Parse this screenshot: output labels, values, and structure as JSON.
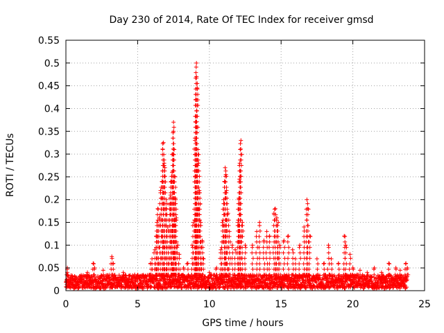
{
  "chart_data": {
    "type": "scatter",
    "title": "Day 230 of 2014, Rate Of TEC Index for receiver gmsd",
    "xlabel": "GPS time / hours",
    "ylabel": "ROTI / TECUs",
    "xlim": [
      0,
      25
    ],
    "ylim": [
      0,
      0.55
    ],
    "xticks": [
      "0",
      "5",
      "10",
      "15",
      "20",
      "25"
    ],
    "yticks": [
      "0",
      "0.05",
      "0.1",
      "0.15",
      "0.2",
      "0.25",
      "0.3",
      "0.35",
      "0.4",
      "0.45",
      "0.5",
      "0.55"
    ],
    "grid": true,
    "marker": "+",
    "series_color": "#ff0000",
    "baseline_hours": [
      0,
      23.8
    ],
    "baseline_roti": [
      0.005,
      0.035
    ],
    "points": [
      [
        0.1,
        0.05
      ],
      [
        0.1,
        0.04
      ],
      [
        0.2,
        0.03
      ],
      [
        0.5,
        0.025
      ],
      [
        1.0,
        0.03
      ],
      [
        1.5,
        0.04
      ],
      [
        1.9,
        0.06
      ],
      [
        2.0,
        0.05
      ],
      [
        2.6,
        0.045
      ],
      [
        3.2,
        0.075
      ],
      [
        3.3,
        0.06
      ],
      [
        4.0,
        0.04
      ],
      [
        4.8,
        0.035
      ],
      [
        5.5,
        0.03
      ],
      [
        5.9,
        0.06
      ],
      [
        6.0,
        0.07
      ],
      [
        6.2,
        0.09
      ],
      [
        6.3,
        0.12
      ],
      [
        6.35,
        0.15
      ],
      [
        6.4,
        0.18
      ],
      [
        6.5,
        0.16
      ],
      [
        6.6,
        0.22
      ],
      [
        6.7,
        0.24
      ],
      [
        6.75,
        0.31
      ],
      [
        6.8,
        0.325
      ],
      [
        6.85,
        0.28
      ],
      [
        6.9,
        0.27
      ],
      [
        7.0,
        0.2
      ],
      [
        7.0,
        0.18
      ],
      [
        7.1,
        0.14
      ],
      [
        7.2,
        0.19
      ],
      [
        7.3,
        0.21
      ],
      [
        7.35,
        0.24
      ],
      [
        7.4,
        0.26
      ],
      [
        7.45,
        0.3
      ],
      [
        7.5,
        0.35
      ],
      [
        7.5,
        0.37
      ],
      [
        7.55,
        0.31
      ],
      [
        7.6,
        0.25
      ],
      [
        7.65,
        0.2
      ],
      [
        7.7,
        0.16
      ],
      [
        7.8,
        0.1
      ],
      [
        7.9,
        0.08
      ],
      [
        8.2,
        0.05
      ],
      [
        8.5,
        0.06
      ],
      [
        8.8,
        0.1
      ],
      [
        8.9,
        0.15
      ],
      [
        9.0,
        0.25
      ],
      [
        9.0,
        0.33
      ],
      [
        9.05,
        0.37
      ],
      [
        9.05,
        0.42
      ],
      [
        9.1,
        0.47
      ],
      [
        9.1,
        0.5
      ],
      [
        9.15,
        0.445
      ],
      [
        9.2,
        0.31
      ],
      [
        9.25,
        0.28
      ],
      [
        9.3,
        0.22
      ],
      [
        9.35,
        0.19
      ],
      [
        9.4,
        0.15
      ],
      [
        9.5,
        0.11
      ],
      [
        9.6,
        0.07
      ],
      [
        10.0,
        0.04
      ],
      [
        10.5,
        0.05
      ],
      [
        10.8,
        0.09
      ],
      [
        10.9,
        0.15
      ],
      [
        11.0,
        0.2
      ],
      [
        11.05,
        0.24
      ],
      [
        11.1,
        0.27
      ],
      [
        11.15,
        0.255
      ],
      [
        11.2,
        0.22
      ],
      [
        11.3,
        0.17
      ],
      [
        11.4,
        0.13
      ],
      [
        11.6,
        0.1
      ],
      [
        11.8,
        0.09
      ],
      [
        12.0,
        0.15
      ],
      [
        12.05,
        0.2
      ],
      [
        12.1,
        0.245
      ],
      [
        12.12,
        0.28
      ],
      [
        12.15,
        0.31
      ],
      [
        12.2,
        0.33
      ],
      [
        12.3,
        0.15
      ],
      [
        12.5,
        0.1
      ],
      [
        13.0,
        0.1
      ],
      [
        13.3,
        0.13
      ],
      [
        13.5,
        0.15
      ],
      [
        13.8,
        0.11
      ],
      [
        14.0,
        0.13
      ],
      [
        14.2,
        0.12
      ],
      [
        14.5,
        0.17
      ],
      [
        14.6,
        0.18
      ],
      [
        14.7,
        0.16
      ],
      [
        14.8,
        0.15
      ],
      [
        14.9,
        0.1
      ],
      [
        15.2,
        0.11
      ],
      [
        15.5,
        0.12
      ],
      [
        15.8,
        0.09
      ],
      [
        16.0,
        0.07
      ],
      [
        16.3,
        0.1
      ],
      [
        16.6,
        0.14
      ],
      [
        16.8,
        0.2
      ],
      [
        16.85,
        0.18
      ],
      [
        17.0,
        0.12
      ],
      [
        17.5,
        0.07
      ],
      [
        18.0,
        0.06
      ],
      [
        18.3,
        0.1
      ],
      [
        18.5,
        0.07
      ],
      [
        19.0,
        0.06
      ],
      [
        19.4,
        0.12
      ],
      [
        19.5,
        0.1
      ],
      [
        19.8,
        0.08
      ],
      [
        20.0,
        0.05
      ],
      [
        20.5,
        0.045
      ],
      [
        21.0,
        0.04
      ],
      [
        21.5,
        0.05
      ],
      [
        22.0,
        0.04
      ],
      [
        22.5,
        0.06
      ],
      [
        23.0,
        0.05
      ],
      [
        23.3,
        0.045
      ],
      [
        23.7,
        0.06
      ],
      [
        23.8,
        0.05
      ]
    ]
  }
}
